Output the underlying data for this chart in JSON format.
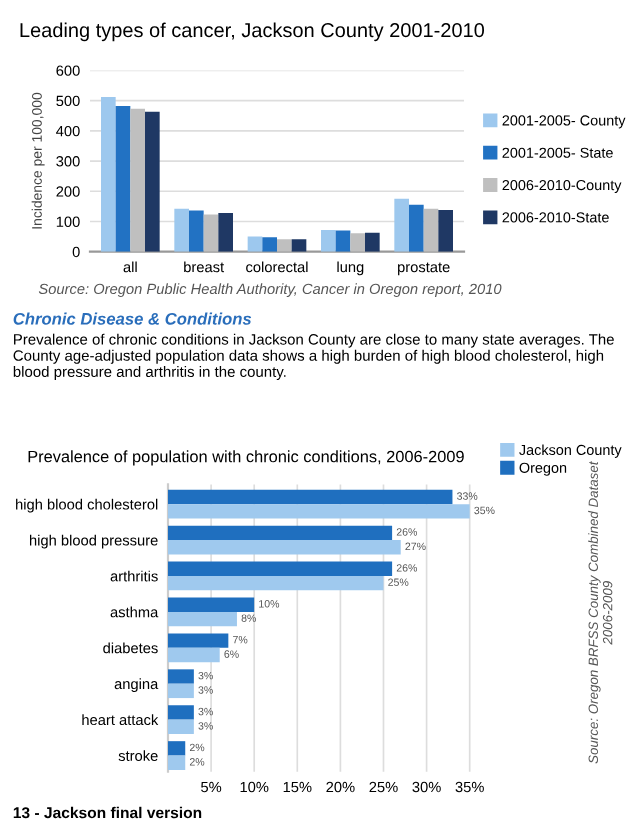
{
  "chart_data": [
    {
      "type": "bar",
      "title": "Leading types of cancer, Jackson County 2001-2010",
      "ylabel": "Incidence per 100,000",
      "categories": [
        "all",
        "breast",
        "colorectal",
        "lung",
        "prostate"
      ],
      "series": [
        {
          "name": "2001-2005- County",
          "color": "#9dc8ee",
          "values": [
            512,
            142,
            50,
            72,
            175
          ]
        },
        {
          "name": "2001-2005- State",
          "color": "#2272c3",
          "values": [
            482,
            136,
            48,
            70,
            155
          ]
        },
        {
          "name": "2006-2010-County",
          "color": "#bfbfbf",
          "values": [
            473,
            123,
            41,
            61,
            142
          ]
        },
        {
          "name": "2006-2010-State",
          "color": "#1f3864",
          "values": [
            463,
            128,
            41,
            63,
            138
          ]
        }
      ],
      "ylim": [
        0,
        600
      ],
      "yticks": [
        0,
        100,
        200,
        300,
        400,
        500,
        600
      ],
      "grid": "y",
      "legend": "right",
      "annotations": [
        "Source: Oregon Public Health Authority, Cancer in Oregon report, 2010"
      ]
    },
    {
      "type": "bar",
      "orientation": "horizontal",
      "title": "Prevalence of population with chronic conditions, 2006-2009",
      "categories": [
        "high blood cholesterol",
        "high blood pressure",
        "arthritis",
        "asthma",
        "diabetes",
        "angina",
        "heart attack",
        "stroke"
      ],
      "series": [
        {
          "name": "Oregon",
          "color": "#1f6fbf",
          "values": [
            33,
            26,
            26,
            10,
            7,
            3,
            3,
            2
          ],
          "value_labels": [
            "33%",
            "26%",
            "26%",
            "10%",
            "7%",
            "3%",
            "3%",
            "2%"
          ]
        },
        {
          "name": "Jackson County",
          "color": "#9fc9ee",
          "values": [
            35,
            27,
            25,
            8,
            6,
            3,
            3,
            2
          ],
          "value_labels": [
            "35%",
            "27%",
            "25%",
            "8%",
            "6%",
            "3%",
            "3%",
            "2%"
          ]
        }
      ],
      "xlim": [
        0,
        35.5
      ],
      "xticks": [
        {
          "value": 5,
          "label": "5%"
        },
        {
          "value": 10,
          "label": "10%"
        },
        {
          "value": 15,
          "label": "15%"
        },
        {
          "value": 20,
          "label": "20%"
        },
        {
          "value": 25,
          "label": "25%"
        },
        {
          "value": 30,
          "label": "30%"
        },
        {
          "value": 35,
          "label": "35%"
        }
      ],
      "grid": "x",
      "legend": "top right",
      "annotations": [
        "Chronic Disease & Conditions",
        "Prevalence of chronic conditions in Jackson County are close to many state averages. The County age-adjusted population data shows a high burden of high blood cholesterol, high blood pressure and arthritis in the county.",
        "Source: Oregon BRFSS County Combined Dataset\n2006-2009",
        "13 - Jackson final version"
      ]
    }
  ]
}
